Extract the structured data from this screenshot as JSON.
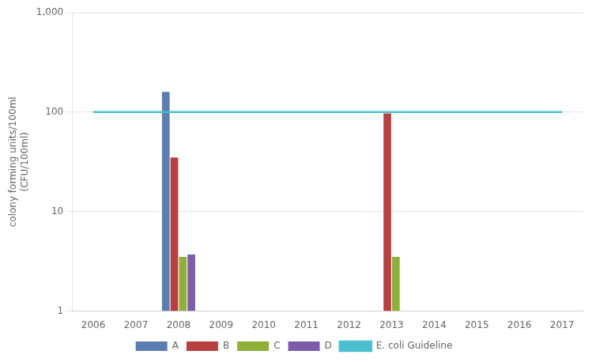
{
  "chart_data": {
    "type": "bar",
    "categories": [
      "2006",
      "2007",
      "2008",
      "2009",
      "2010",
      "2011",
      "2012",
      "2013",
      "2014",
      "2015",
      "2016",
      "2017"
    ],
    "series": [
      {
        "name": "A",
        "color": "#5b7db1",
        "values": [
          null,
          null,
          160,
          null,
          null,
          null,
          null,
          null,
          null,
          null,
          null,
          null
        ]
      },
      {
        "name": "B",
        "color": "#b94040",
        "values": [
          null,
          null,
          35,
          null,
          null,
          null,
          null,
          97,
          null,
          null,
          null,
          null
        ]
      },
      {
        "name": "C",
        "color": "#8faf38",
        "values": [
          null,
          null,
          3.5,
          null,
          null,
          null,
          null,
          3.5,
          null,
          null,
          null,
          null
        ]
      },
      {
        "name": "D",
        "color": "#7b5ea7",
        "values": [
          null,
          null,
          3.7,
          null,
          null,
          null,
          null,
          null,
          null,
          null,
          null,
          null
        ]
      },
      {
        "name": "E. coli Guideline",
        "type": "line",
        "color": "#4bbfce",
        "values": [
          100,
          100,
          100,
          100,
          100,
          100,
          100,
          100,
          100,
          100,
          100,
          100
        ]
      }
    ],
    "y_label": [
      "colony forming units/100ml",
      "(CFU/100ml)"
    ],
    "log": "y",
    "ylim": [
      1,
      1000
    ],
    "yticks": [
      1,
      10,
      100,
      {
        "value": 1000,
        "label": "1,000"
      }
    ],
    "grid": true,
    "legend": "bottom"
  }
}
